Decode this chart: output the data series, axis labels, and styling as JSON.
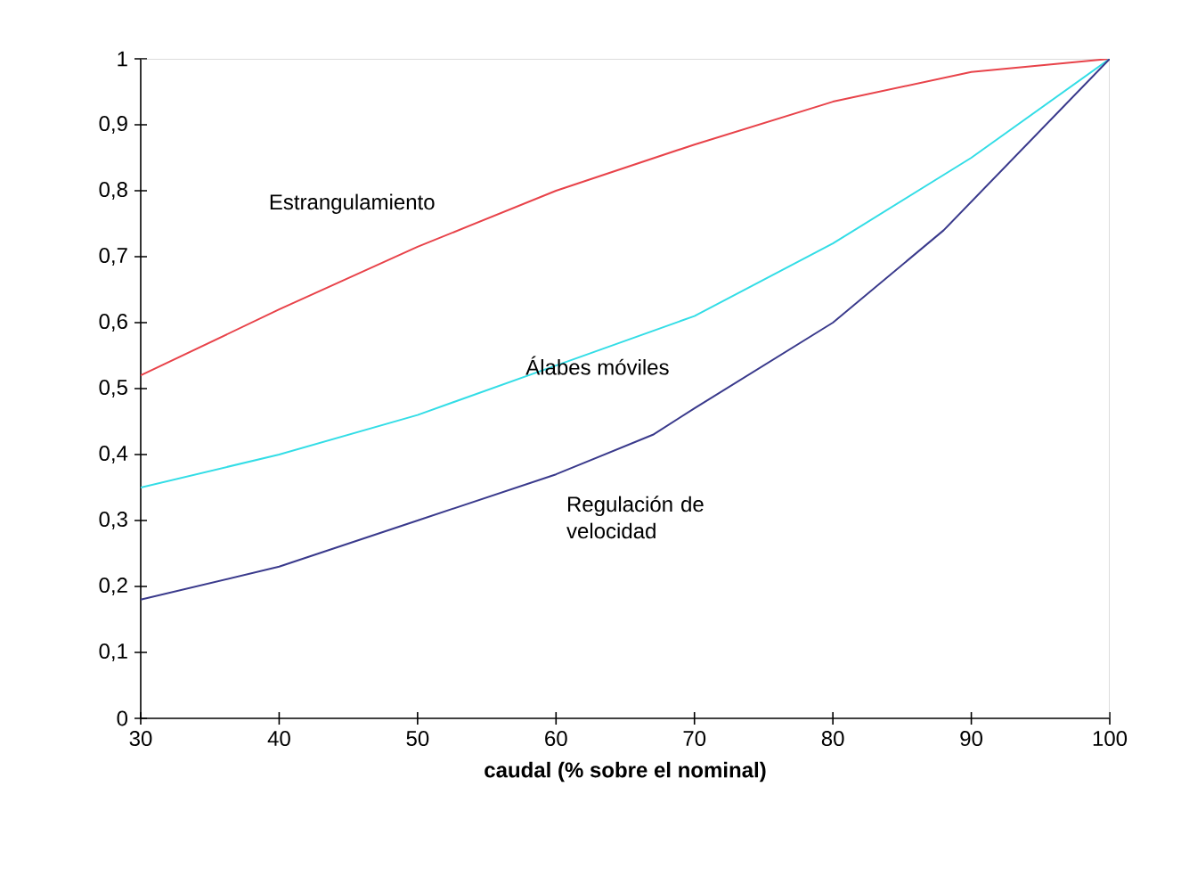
{
  "chart_data": {
    "type": "line",
    "xlabel": "caudal (% sobre el nominal)",
    "xlim": [
      30,
      100
    ],
    "xticks": [
      30,
      40,
      50,
      60,
      70,
      80,
      90,
      100
    ],
    "ylim": [
      0,
      1
    ],
    "yticks": [
      0,
      {
        "value": 0.1,
        "label": "0,1"
      },
      {
        "value": 0.2,
        "label": "0,2"
      },
      {
        "value": 0.3,
        "label": "0,3"
      },
      {
        "value": 0.4,
        "label": "0,4"
      },
      {
        "value": 0.5,
        "label": "0,5"
      },
      {
        "value": 0.6,
        "label": "0,6"
      },
      {
        "value": 0.7,
        "label": "0,7"
      },
      {
        "value": 0.8,
        "label": "0,8"
      },
      {
        "value": 0.9,
        "label": "0,9"
      },
      1
    ],
    "grid": false,
    "marker": "none",
    "line_style": "solid",
    "series": [
      {
        "name": "Estrangulamiento",
        "color": "#e8434a",
        "x": [
          30,
          40,
          50,
          60,
          70,
          80,
          90,
          100
        ],
        "values": [
          0.52,
          0.62,
          0.715,
          0.8,
          0.87,
          0.935,
          0.98,
          1.0
        ]
      },
      {
        "name": "Álabes móviles",
        "color": "#33dde6",
        "x": [
          30,
          40,
          50,
          60,
          70,
          80,
          90,
          100
        ],
        "values": [
          0.35,
          0.4,
          0.46,
          0.535,
          0.61,
          0.72,
          0.85,
          1.0
        ]
      },
      {
        "name": "Regulación de velocidad",
        "color": "#3a3a8c",
        "x": [
          30,
          40,
          50,
          60,
          67,
          70,
          80,
          88,
          100
        ],
        "values": [
          0.18,
          0.23,
          0.3,
          0.37,
          0.43,
          0.47,
          0.6,
          0.74,
          1.0
        ]
      }
    ]
  }
}
